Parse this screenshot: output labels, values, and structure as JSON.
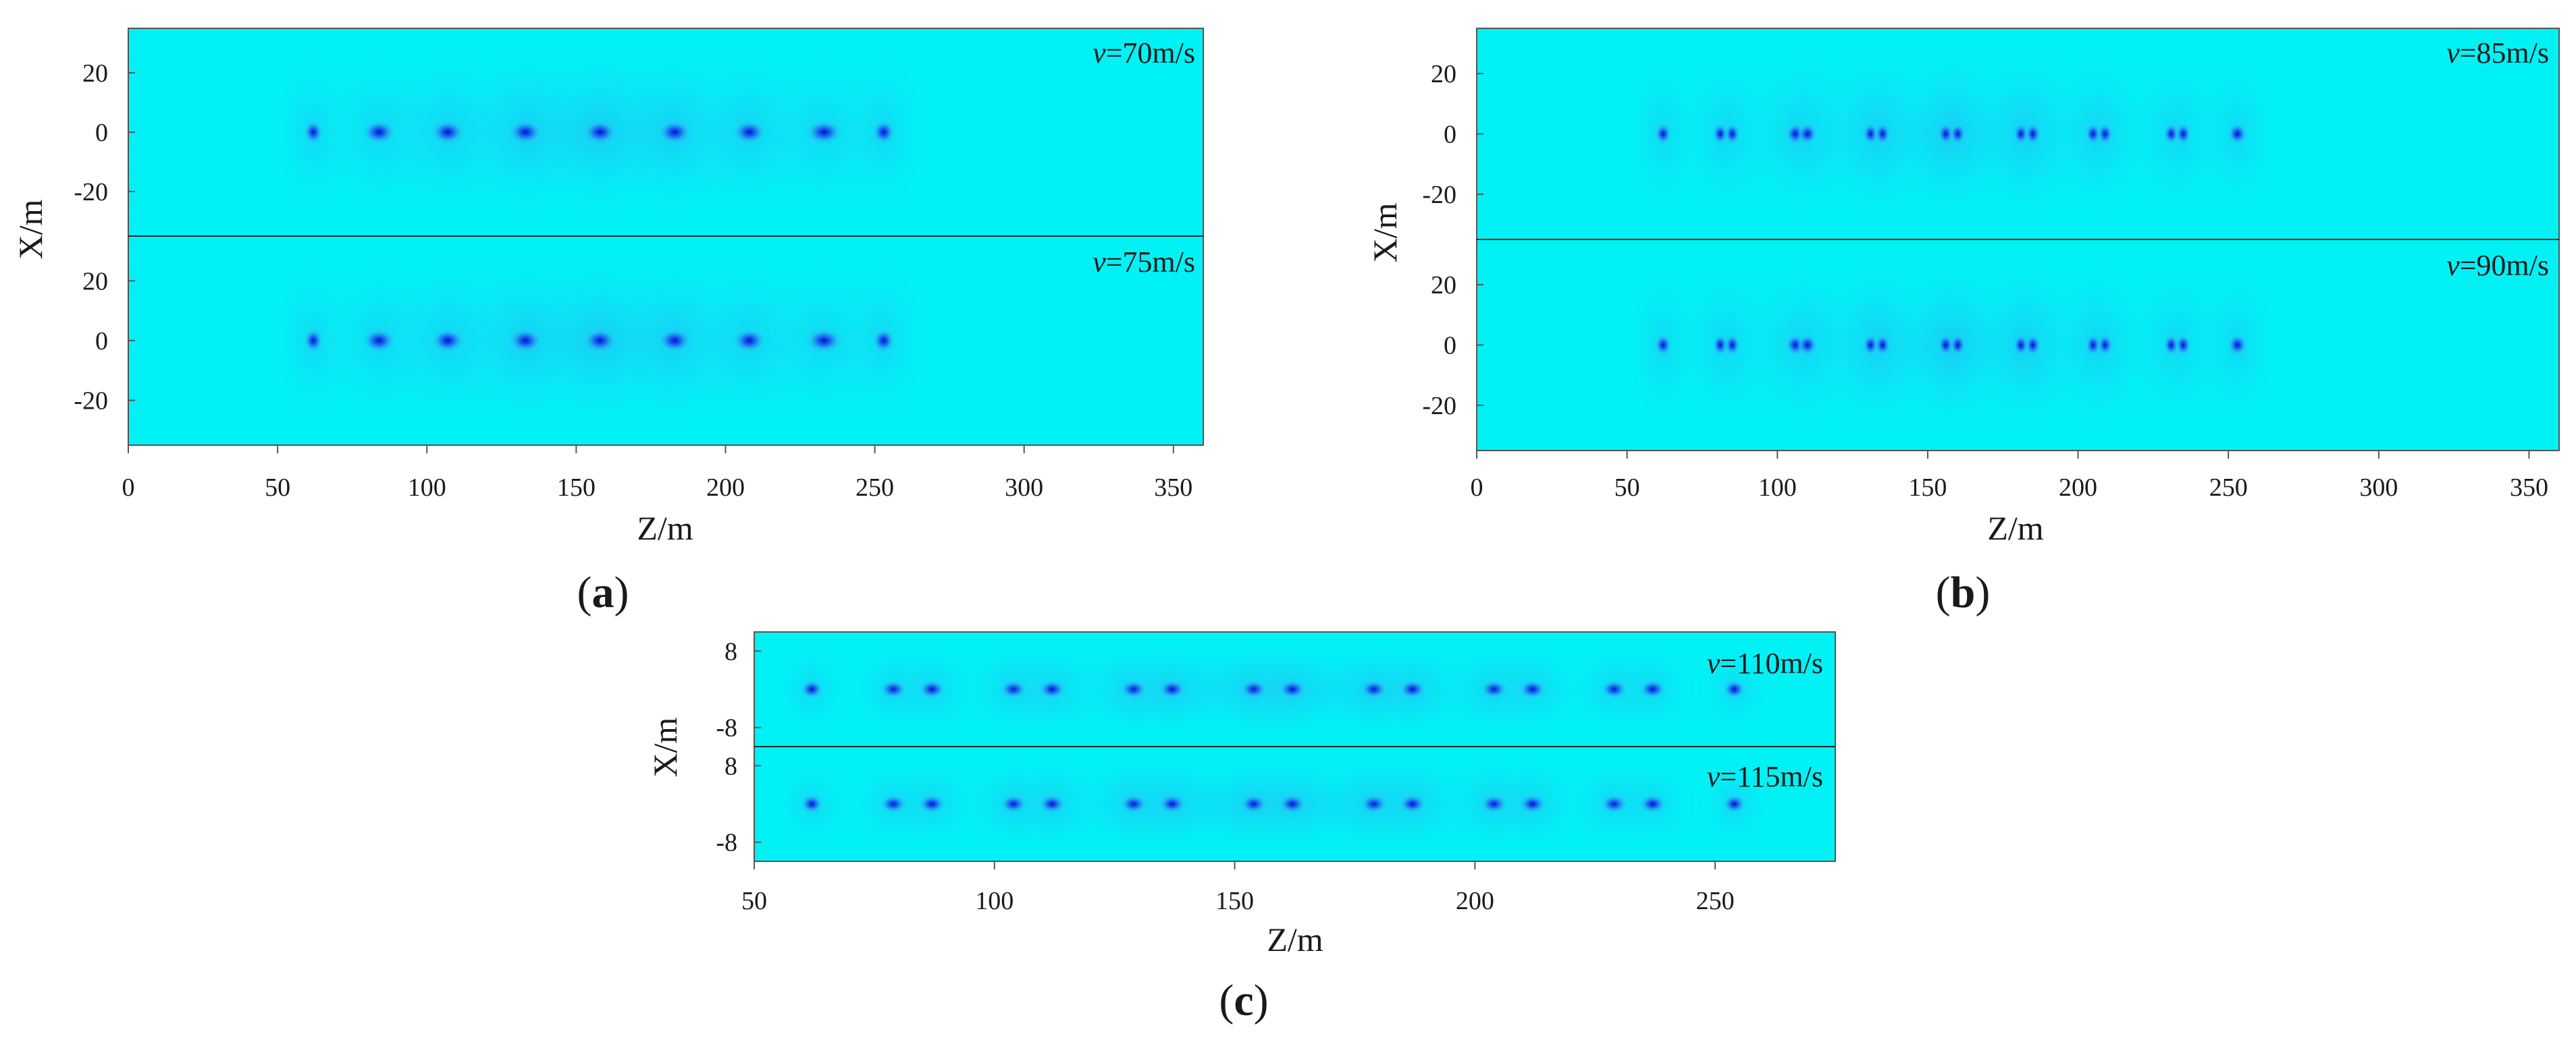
{
  "chart_data": [
    {
      "type": "heatmap",
      "panel": "a",
      "caption": {
        "open": "(",
        "letter": "a",
        "close": ")"
      },
      "xlabel": "Z/m",
      "ylabel": "X/m",
      "xlim": [
        0,
        360
      ],
      "ylim": [
        -35,
        35
      ],
      "xticks": [
        0,
        50,
        100,
        150,
        200,
        250,
        300,
        350
      ],
      "yticks": [
        20,
        0,
        -20
      ],
      "subplots": [
        {
          "speed_label": "=70m/s",
          "speed_symbol": "v"
        },
        {
          "speed_label": "=75m/s",
          "speed_symbol": "v"
        }
      ],
      "blobs": [
        {
          "z": 62,
          "w": 7,
          "dbl": 0
        },
        {
          "z": 84,
          "w": 12,
          "dbl": 0
        },
        {
          "z": 107,
          "w": 12,
          "dbl": 0
        },
        {
          "z": 133,
          "w": 12,
          "dbl": 0
        },
        {
          "z": 158,
          "w": 12,
          "dbl": 0
        },
        {
          "z": 183,
          "w": 12,
          "dbl": 0
        },
        {
          "z": 208,
          "w": 12,
          "dbl": 0
        },
        {
          "z": 233,
          "w": 13,
          "dbl": 0
        },
        {
          "z": 253,
          "w": 8,
          "dbl": 0
        }
      ]
    },
    {
      "type": "heatmap",
      "panel": "b",
      "caption": {
        "open": "(",
        "letter": "b",
        "close": ")"
      },
      "xlabel": "Z/m",
      "ylabel": "X/m",
      "xlim": [
        0,
        360
      ],
      "ylim": [
        -35,
        35
      ],
      "xticks": [
        0,
        50,
        100,
        150,
        200,
        250,
        300,
        350
      ],
      "yticks": [
        20,
        0,
        -20
      ],
      "subplots": [
        {
          "speed_label": "=85m/s",
          "speed_symbol": "v"
        },
        {
          "speed_label": "=90m/s",
          "speed_symbol": "v"
        }
      ],
      "blobs": [
        {
          "z": 62,
          "w": 6,
          "dbl": 0
        },
        {
          "z": 83,
          "w": 8,
          "dbl": 4
        },
        {
          "z": 108,
          "w": 10,
          "dbl": 4
        },
        {
          "z": 133,
          "w": 8,
          "dbl": 4
        },
        {
          "z": 158,
          "w": 8,
          "dbl": 4
        },
        {
          "z": 183,
          "w": 8,
          "dbl": 4
        },
        {
          "z": 207,
          "w": 8,
          "dbl": 4
        },
        {
          "z": 233,
          "w": 8,
          "dbl": 4
        },
        {
          "z": 253,
          "w": 7,
          "dbl": 0
        }
      ]
    },
    {
      "type": "heatmap",
      "panel": "c",
      "caption": {
        "open": "(",
        "letter": "c",
        "close": ")"
      },
      "xlabel": "Z/m",
      "ylabel": "X/m",
      "xlim": [
        50,
        275
      ],
      "ylim": [
        -12,
        12
      ],
      "xticks": [
        50,
        100,
        150,
        200,
        250
      ],
      "yticks": [
        8,
        -8
      ],
      "subplots": [
        {
          "speed_label": "=110m/s",
          "speed_symbol": "v"
        },
        {
          "speed_label": "=115m/s",
          "speed_symbol": "v"
        }
      ],
      "blobs": [
        {
          "z": 62,
          "w": 5,
          "dbl": 0
        },
        {
          "z": 79,
          "w": 6,
          "dbl": 0
        },
        {
          "z": 87,
          "w": 6,
          "dbl": 0
        },
        {
          "z": 104,
          "w": 6,
          "dbl": 0
        },
        {
          "z": 112,
          "w": 6,
          "dbl": 0
        },
        {
          "z": 129,
          "w": 6,
          "dbl": 0
        },
        {
          "z": 137,
          "w": 6,
          "dbl": 0
        },
        {
          "z": 154,
          "w": 6,
          "dbl": 0
        },
        {
          "z": 162,
          "w": 6,
          "dbl": 0
        },
        {
          "z": 179,
          "w": 6,
          "dbl": 0
        },
        {
          "z": 187,
          "w": 6,
          "dbl": 0
        },
        {
          "z": 204,
          "w": 6,
          "dbl": 0
        },
        {
          "z": 212,
          "w": 6,
          "dbl": 0
        },
        {
          "z": 229,
          "w": 6,
          "dbl": 0
        },
        {
          "z": 237,
          "w": 6,
          "dbl": 0
        },
        {
          "z": 254,
          "w": 5,
          "dbl": 0
        }
      ]
    }
  ],
  "colors": {
    "background": "#00f2f5",
    "field": "#17e6f3",
    "blob_core": "#0010d8",
    "blob_mid": "#1a63ee",
    "blob_halo": "#2ab0f4",
    "frame": "#555555"
  }
}
